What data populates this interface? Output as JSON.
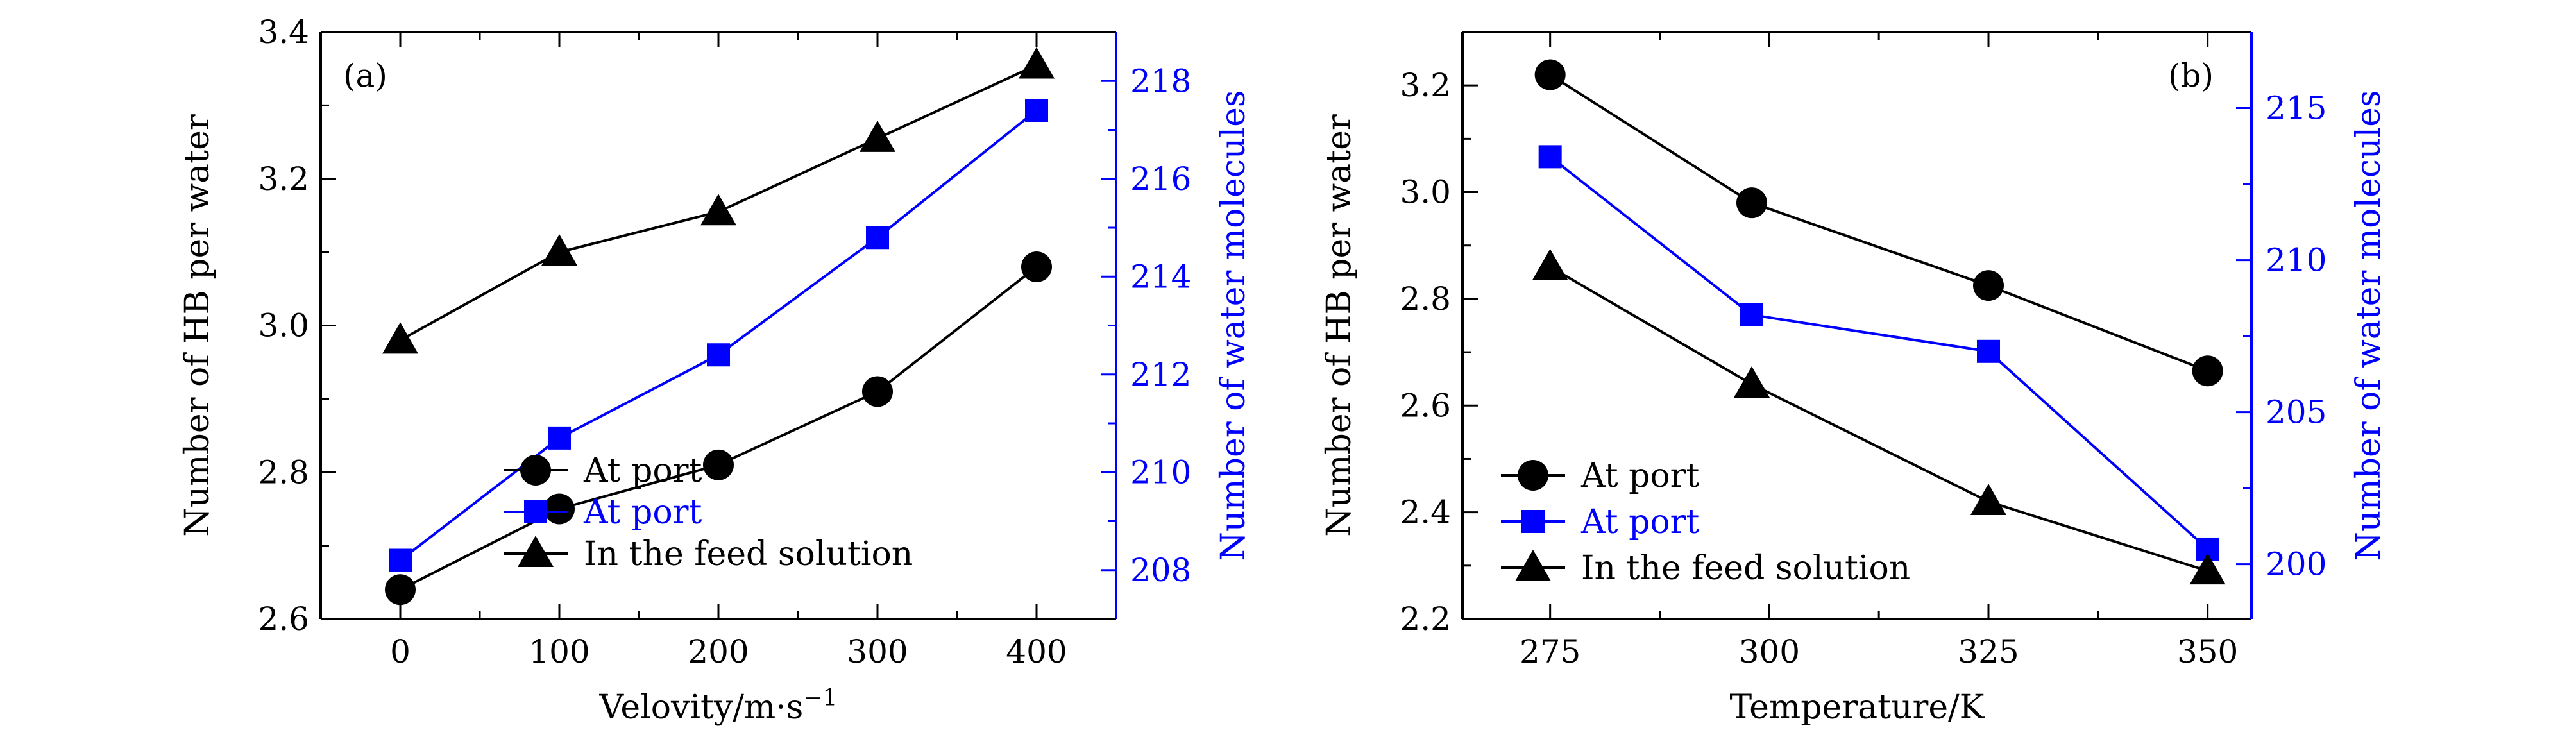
{
  "colors": {
    "black_series": "#000000",
    "blue_series": "#0000ff"
  },
  "chart_data": [
    {
      "type": "line",
      "panel_label": "(a)",
      "xlabel": "Velovity/m·s",
      "xlabel_superscript": "−1",
      "ylabel_left": "Number of HB per water",
      "ylabel_right": "Number of water molecules",
      "xlim": [
        -50,
        450
      ],
      "ylim_left": [
        2.6,
        3.4
      ],
      "ylim_right": [
        207,
        219
      ],
      "x_ticks": [
        0,
        100,
        200,
        300,
        400
      ],
      "x_tick_labels": [
        "0",
        "100",
        "200",
        "300",
        "400"
      ],
      "y_left_ticks": [
        2.6,
        2.8,
        3.0,
        3.2,
        3.4
      ],
      "y_left_tick_labels": [
        "2.6",
        "2.8",
        "3.0",
        "3.2",
        "3.4"
      ],
      "y_right_ticks": [
        208,
        210,
        212,
        214,
        216,
        218
      ],
      "y_right_tick_labels": [
        "208",
        "210",
        "212",
        "214",
        "216",
        "218"
      ],
      "grid": false,
      "legend_position": "bottom-right",
      "series": [
        {
          "name": "At port",
          "axis": "left",
          "marker": "circle",
          "color": "#000000",
          "x": [
            0,
            100,
            200,
            300,
            400
          ],
          "y": [
            2.64,
            2.75,
            2.81,
            2.91,
            3.08
          ]
        },
        {
          "name": "At port",
          "axis": "right",
          "marker": "square",
          "color": "#0000ff",
          "x": [
            0,
            100,
            200,
            300,
            400
          ],
          "y": [
            208.2,
            210.7,
            212.4,
            214.8,
            217.4
          ]
        },
        {
          "name": "In the feed solution",
          "axis": "left",
          "marker": "triangle",
          "color": "#000000",
          "x": [
            0,
            100,
            200,
            300,
            400
          ],
          "y": [
            2.98,
            3.1,
            3.155,
            3.255,
            3.355
          ]
        }
      ],
      "legend_order": [
        0,
        1,
        2
      ]
    },
    {
      "type": "line",
      "panel_label": "(b)",
      "xlabel": "Temperature/K",
      "xlabel_superscript": "",
      "ylabel_left": "Number of HB per water",
      "ylabel_right": "Number of water molecules",
      "xlim": [
        265,
        355
      ],
      "ylim_left": [
        2.2,
        3.3
      ],
      "ylim_right": [
        198.2,
        217.5
      ],
      "x_ticks": [
        275,
        300,
        325,
        350
      ],
      "x_tick_labels": [
        "275",
        "300",
        "325",
        "350"
      ],
      "y_left_ticks": [
        2.2,
        2.4,
        2.6,
        2.8,
        3.0,
        3.2
      ],
      "y_left_tick_labels": [
        "2.2",
        "2.4",
        "2.6",
        "2.8",
        "3.0",
        "3.2"
      ],
      "y_right_ticks": [
        200,
        205,
        210,
        215
      ],
      "y_right_tick_labels": [
        "200",
        "205",
        "210",
        "215"
      ],
      "grid": false,
      "legend_position": "bottom-left",
      "series": [
        {
          "name": "At port",
          "axis": "left",
          "marker": "circle",
          "color": "#000000",
          "x": [
            275,
            298,
            325,
            350
          ],
          "y": [
            3.22,
            2.98,
            2.825,
            2.665
          ]
        },
        {
          "name": "At port",
          "axis": "right",
          "marker": "square",
          "color": "#0000ff",
          "x": [
            275,
            298,
            325,
            350
          ],
          "y": [
            213.4,
            208.2,
            207.0,
            200.5
          ]
        },
        {
          "name": "In the feed solution",
          "axis": "left",
          "marker": "triangle",
          "color": "#000000",
          "x": [
            275,
            298,
            325,
            350
          ],
          "y": [
            2.86,
            2.64,
            2.42,
            2.29
          ]
        }
      ],
      "legend_order": [
        0,
        1,
        2
      ]
    }
  ]
}
